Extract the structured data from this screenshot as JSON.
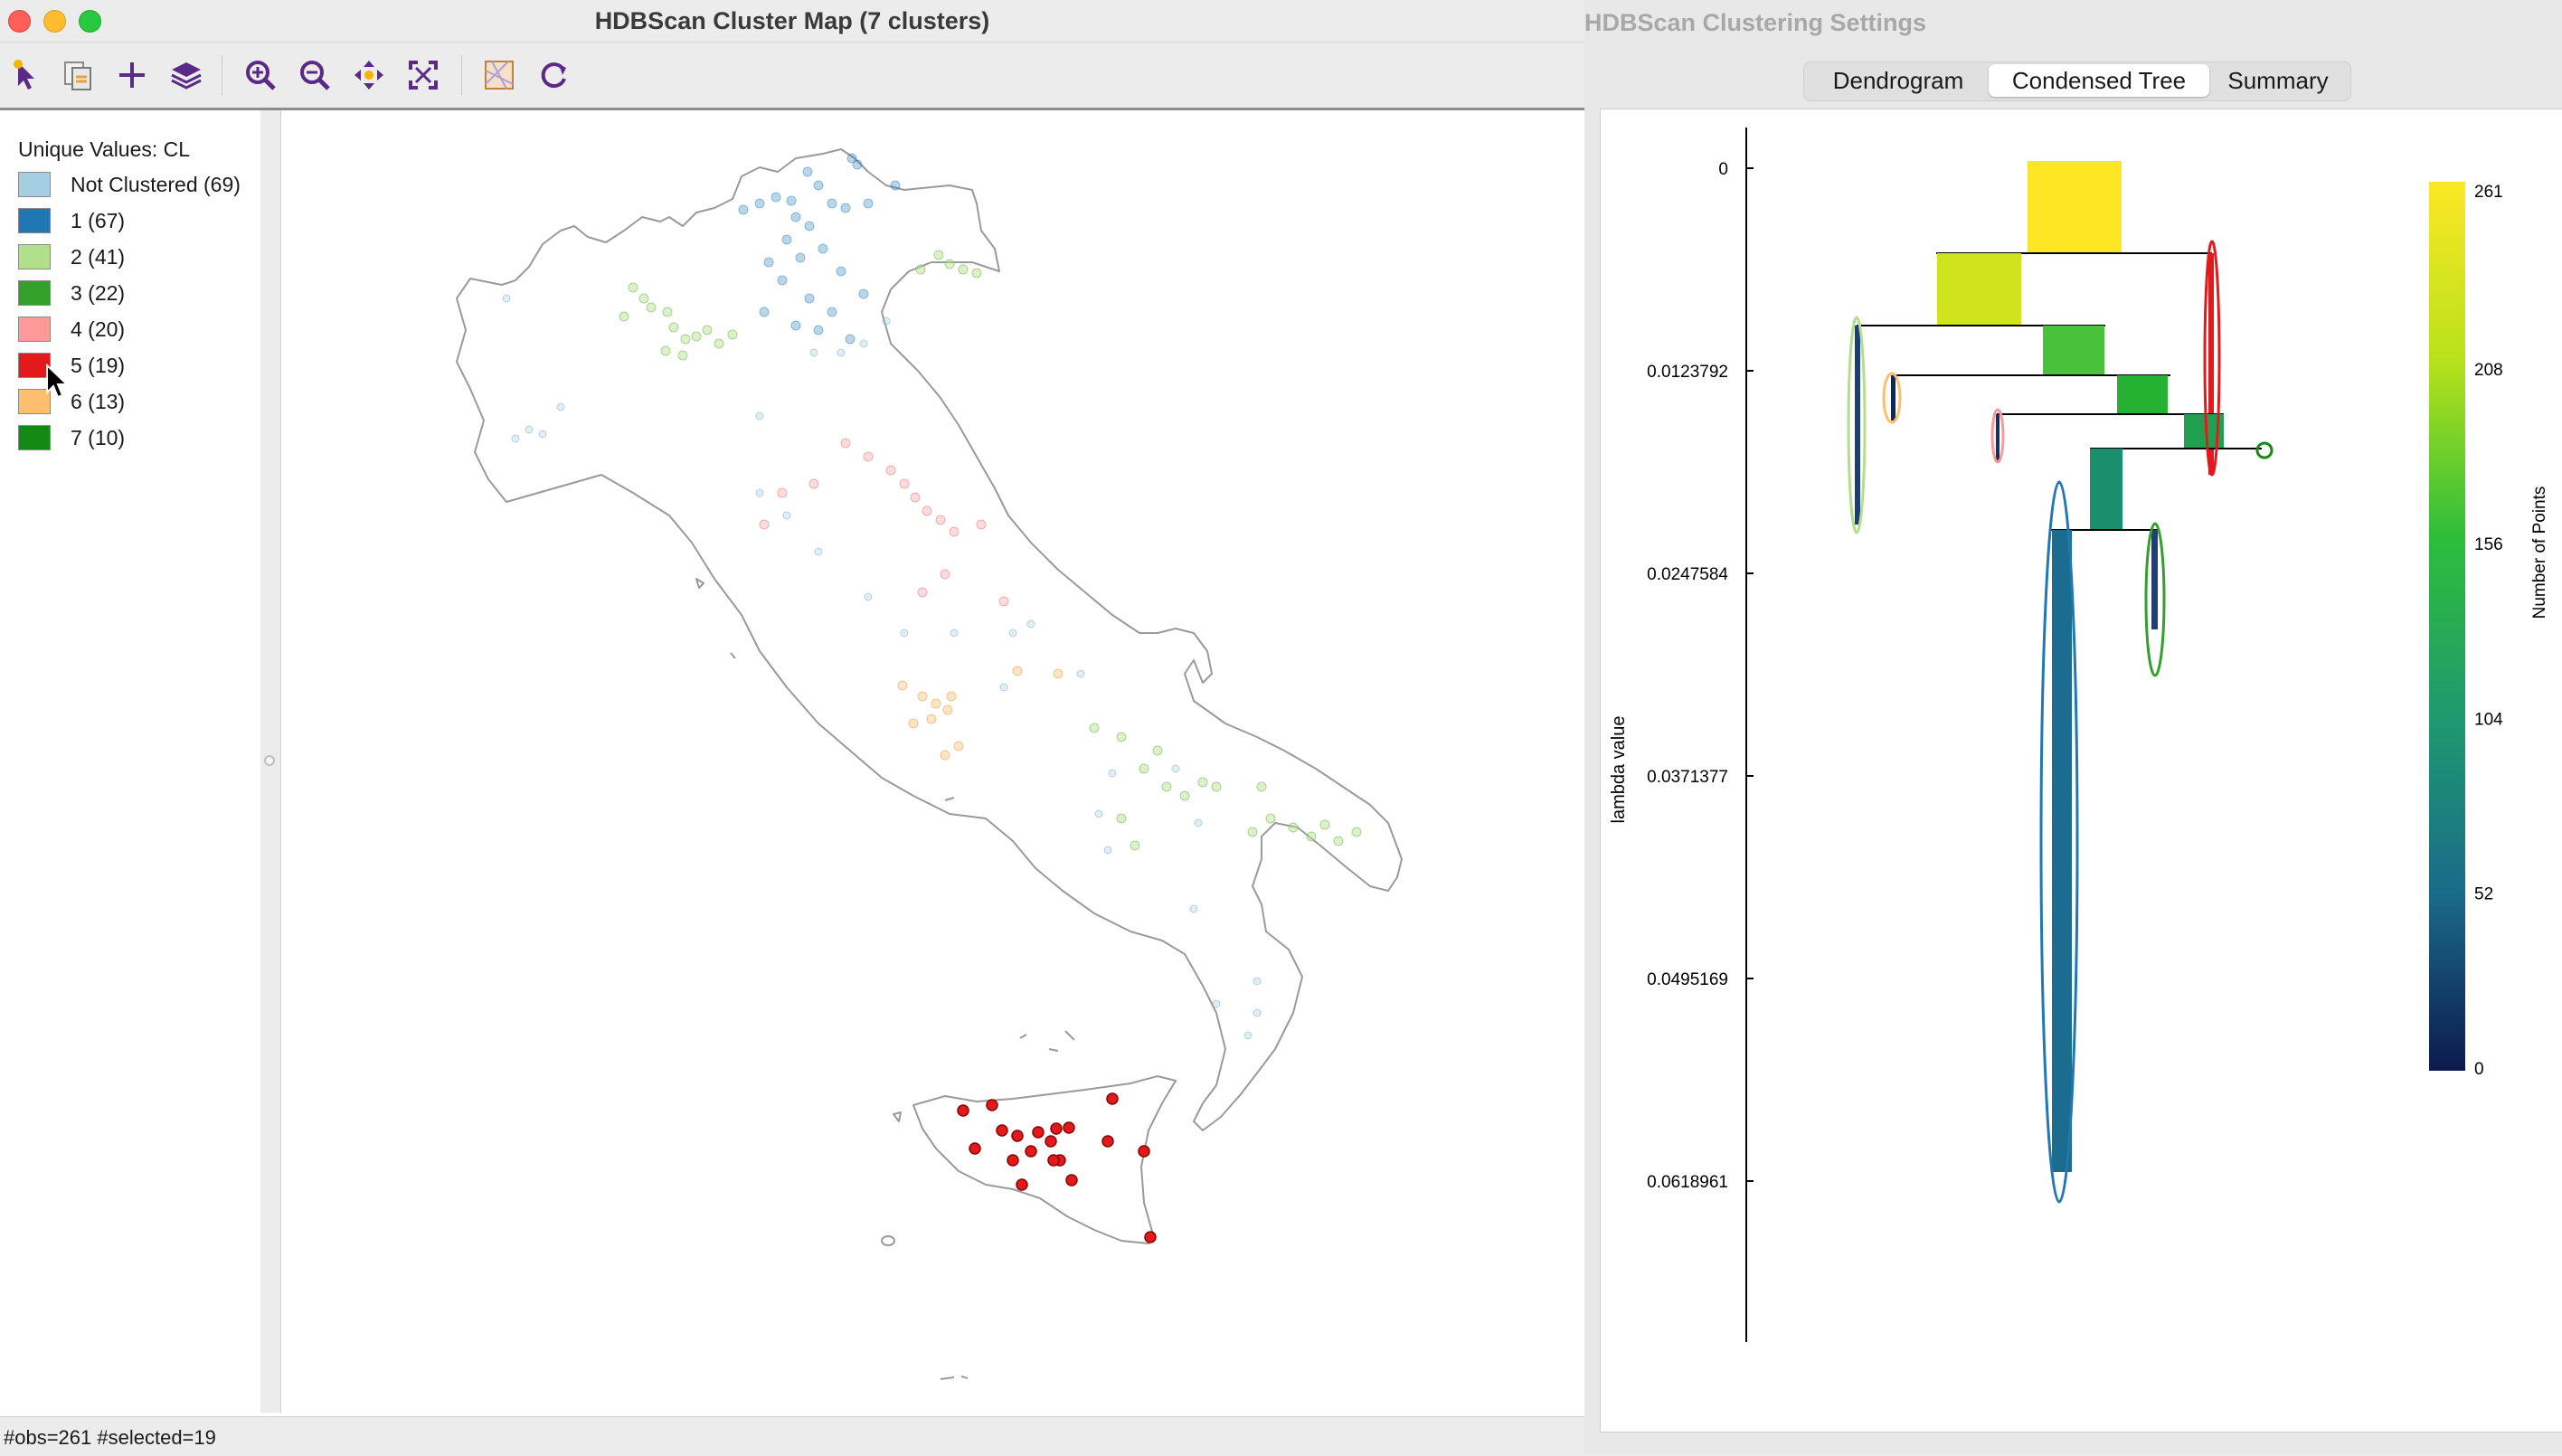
{
  "map_window": {
    "title": "HDBScan Cluster Map (7 clusters)",
    "toolbar": [
      {
        "name": "select-tool-icon",
        "tooltip": "Select"
      },
      {
        "name": "copy-map-icon",
        "tooltip": "Copy"
      },
      {
        "name": "add-icon",
        "tooltip": "Add"
      },
      {
        "name": "layers-icon",
        "tooltip": "Layers"
      },
      {
        "name": "zoom-in-icon",
        "tooltip": "Zoom in"
      },
      {
        "name": "zoom-out-icon",
        "tooltip": "Zoom out"
      },
      {
        "name": "pan-icon",
        "tooltip": "Pan"
      },
      {
        "name": "full-extent-icon",
        "tooltip": "Full extent"
      },
      {
        "name": "basemap-icon",
        "tooltip": "Basemap"
      },
      {
        "name": "refresh-icon",
        "tooltip": "Refresh"
      }
    ],
    "legend": {
      "title": "Unique Values: CL",
      "items": [
        {
          "label": "Not Clustered (69)",
          "color": "#a6cee3"
        },
        {
          "label": "1 (67)",
          "color": "#1f78b4"
        },
        {
          "label": "2 (41)",
          "color": "#b2df8a"
        },
        {
          "label": "3 (22)",
          "color": "#33a02c"
        },
        {
          "label": "4 (20)",
          "color": "#fb9a99"
        },
        {
          "label": "5 (19)",
          "color": "#e31a1c"
        },
        {
          "label": "6 (13)",
          "color": "#fdbf6f"
        },
        {
          "label": "7 (10)",
          "color": "#138a13"
        }
      ]
    },
    "status": "#obs=261 #selected=19"
  },
  "settings_window": {
    "title": "HDBScan Clustering Settings",
    "tabs": [
      {
        "label": "Dendrogram",
        "active": false
      },
      {
        "label": "Condensed Tree",
        "active": true
      },
      {
        "label": "Summary",
        "active": false
      }
    ],
    "chart_data": {
      "type": "condensed-tree",
      "ylabel": "lambda value",
      "y_ticks": [
        "0",
        "0.0123792",
        "0.0247584",
        "0.0371377",
        "0.0495169",
        "0.0618961"
      ],
      "colorbar": {
        "label": "Number of Points",
        "ticks": [
          "0",
          "52",
          "104",
          "156",
          "208",
          "261"
        ],
        "range": [
          0,
          261
        ],
        "colors": [
          "#0d1a4e",
          "#1a6b8a",
          "#1f9a6e",
          "#2ebd3a",
          "#b7e21b",
          "#fde725"
        ]
      },
      "clusters": [
        {
          "cluster": "2",
          "lambda_birth": 0.0099,
          "points": 41
        },
        {
          "cluster": "6",
          "lambda_birth": 0.0136,
          "points": 13
        },
        {
          "cluster": "4",
          "lambda_birth": 0.0152,
          "points": 20
        },
        {
          "cluster": "5",
          "lambda_birth": 0.0055,
          "points": 19
        },
        {
          "cluster": "7",
          "lambda_birth": 0.0172,
          "points": 10
        },
        {
          "cluster": "1",
          "lambda_birth": 0.0222,
          "points": 67
        },
        {
          "cluster": "3",
          "lambda_birth": 0.0222,
          "points": 22
        }
      ]
    }
  }
}
